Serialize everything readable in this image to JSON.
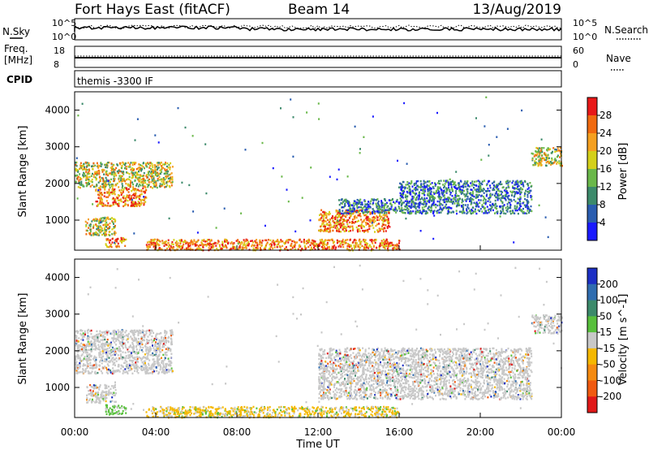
{
  "header": {
    "title": "Fort Hays East (fitACF)",
    "beam": "Beam 14",
    "date": "13/Aug/2019"
  },
  "top_panels": {
    "nsky_label": "N.Sky",
    "nsearch_label": "N.Search",
    "noise_ticks_left": [
      "10^5",
      "10^0"
    ],
    "noise_ticks_right": [
      "10^5",
      "10^0"
    ],
    "freq_label_1": "Freq.",
    "freq_label_2": "[MHz]",
    "freq_ticks": [
      "18",
      "8"
    ],
    "nave_label": "Nave",
    "nave_ticks": [
      "60",
      "0"
    ],
    "cpid_label": "CPID",
    "cpid_text": "themis -3300 IF"
  },
  "x_axis": {
    "label": "Time UT",
    "ticks": [
      "00:00",
      "04:00",
      "08:00",
      "12:00",
      "16:00",
      "20:00",
      "00:00"
    ]
  },
  "power_panel": {
    "ylabel": "Slant Range [km]",
    "yticks": [
      "1000",
      "2000",
      "3000",
      "4000"
    ],
    "colorbar_label": "Power [dB]",
    "colorbar_ticks": [
      "4",
      "8",
      "12",
      "16",
      "20",
      "24",
      "28"
    ],
    "colors": [
      "#1a1aff",
      "#2a5db0",
      "#3c8a6b",
      "#6ab84a",
      "#d4d01a",
      "#f5a020",
      "#f06a10",
      "#e81818"
    ]
  },
  "velocity_panel": {
    "ylabel": "Slant Range [km]",
    "yticks": [
      "1000",
      "2000",
      "3000",
      "4000"
    ],
    "colorbar_label": "Velocity [m s^-1]",
    "colorbar_ticks": [
      "200",
      "100",
      "50",
      "15",
      "-15",
      "-50",
      "-100",
      "-200"
    ],
    "colors": [
      "#1c2fc4",
      "#2f6db0",
      "#3c8a6b",
      "#58c03c",
      "#c8c8c8",
      "#f5b800",
      "#f58a10",
      "#f05a10",
      "#e01818"
    ]
  },
  "chart_data": {
    "type": "heatmap",
    "x_range_hours": [
      0,
      24
    ],
    "y_range_km": [
      180,
      4500
    ],
    "power_regions": [
      {
        "t0": 0.0,
        "t1": 4.8,
        "r0": 1900,
        "r1": 2600,
        "level": "mid"
      },
      {
        "t0": 1.0,
        "t1": 3.5,
        "r0": 1400,
        "r1": 1900,
        "level": "high"
      },
      {
        "t0": 0.5,
        "t1": 2.0,
        "r0": 600,
        "r1": 1100,
        "level": "mid"
      },
      {
        "t0": 1.5,
        "t1": 2.5,
        "r0": 280,
        "r1": 550,
        "level": "high"
      },
      {
        "t0": 3.5,
        "t1": 16.0,
        "r0": 200,
        "r1": 500,
        "level": "high"
      },
      {
        "t0": 12.0,
        "t1": 15.5,
        "r0": 700,
        "r1": 1300,
        "level": "high"
      },
      {
        "t0": 13.0,
        "t1": 22.5,
        "r0": 1200,
        "r1": 1600,
        "level": "low"
      },
      {
        "t0": 16.0,
        "t1": 22.5,
        "r0": 1600,
        "r1": 2100,
        "level": "low"
      },
      {
        "t0": 22.5,
        "t1": 24.0,
        "r0": 2500,
        "r1": 3000,
        "level": "mid"
      }
    ],
    "velocity_regions": [
      {
        "t0": 0.0,
        "t1": 4.8,
        "r0": 1400,
        "r1": 2600,
        "level": "near-zero"
      },
      {
        "t0": 0.5,
        "t1": 2.0,
        "r0": 600,
        "r1": 1100,
        "level": "near-zero"
      },
      {
        "t0": 1.5,
        "t1": 2.5,
        "r0": 280,
        "r1": 550,
        "level": "positive"
      },
      {
        "t0": 3.5,
        "t1": 16.0,
        "r0": 200,
        "r1": 500,
        "level": "negative"
      },
      {
        "t0": 12.0,
        "t1": 22.5,
        "r0": 700,
        "r1": 2100,
        "level": "near-zero"
      },
      {
        "t0": 22.5,
        "t1": 24.0,
        "r0": 2500,
        "r1": 3000,
        "level": "near-zero"
      }
    ]
  }
}
